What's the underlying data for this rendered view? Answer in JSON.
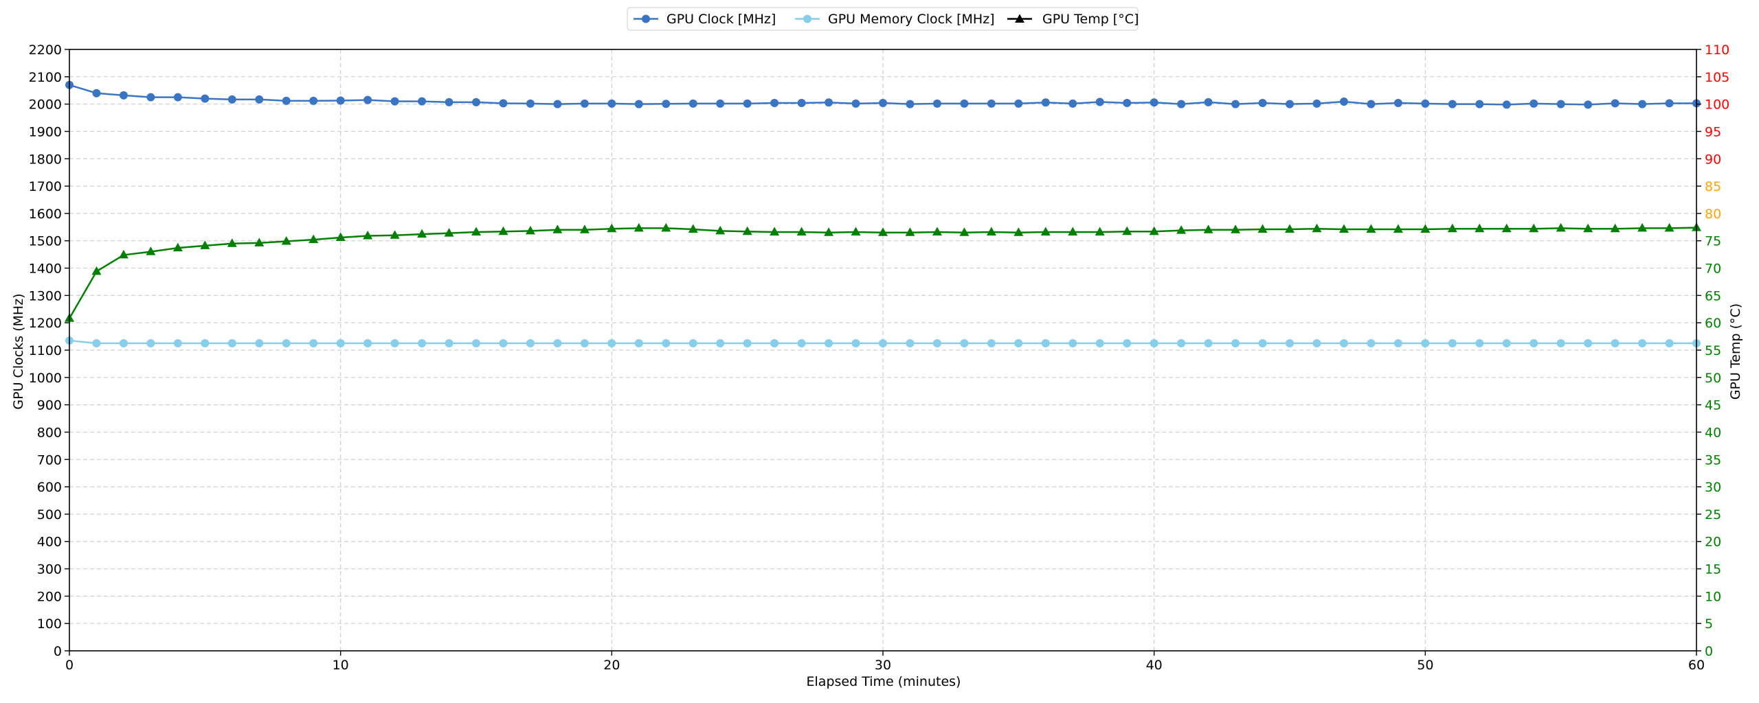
{
  "chart_data": {
    "type": "line",
    "xlabel": "Elapsed Time (minutes)",
    "ylabel_left": "GPU Clocks (MHz)",
    "ylabel_right": "GPU Temp (°C)",
    "xlim": [
      0,
      60
    ],
    "ylim_left": [
      0,
      2200
    ],
    "ylim_right": [
      0,
      110
    ],
    "xticks": [
      0,
      10,
      20,
      30,
      40,
      50,
      60
    ],
    "yticks_left": [
      0,
      100,
      200,
      300,
      400,
      500,
      600,
      700,
      800,
      900,
      1000,
      1100,
      1200,
      1300,
      1400,
      1500,
      1600,
      1700,
      1800,
      1900,
      2000,
      2100,
      2200
    ],
    "yticks_right": [
      0,
      5,
      10,
      15,
      20,
      25,
      30,
      35,
      40,
      45,
      50,
      55,
      60,
      65,
      70,
      75,
      80,
      85,
      90,
      95,
      100,
      105,
      110
    ],
    "right_tick_colors": {
      "green_upto": 75,
      "orange": [
        80,
        85
      ],
      "red_from": 90
    },
    "colors": {
      "green": "#008000",
      "orange": "#FFA500",
      "red": "#FF0000"
    },
    "grid": true,
    "legend_position": "top-center",
    "x": [
      0,
      1,
      2,
      3,
      4,
      5,
      6,
      7,
      8,
      9,
      10,
      11,
      12,
      13,
      14,
      15,
      16,
      17,
      18,
      19,
      20,
      21,
      22,
      23,
      24,
      25,
      26,
      27,
      28,
      29,
      30,
      31,
      32,
      33,
      34,
      35,
      36,
      37,
      38,
      39,
      40,
      41,
      42,
      43,
      44,
      45,
      46,
      47,
      48,
      49,
      50,
      51,
      52,
      53,
      54,
      55,
      56,
      57,
      58,
      59,
      60
    ],
    "series": [
      {
        "name": "GPU Clock [MHz]",
        "axis": "left",
        "color": "#3a75c4",
        "marker": "circle",
        "values": [
          2070,
          2040,
          2032,
          2025,
          2025,
          2020,
          2017,
          2017,
          2012,
          2012,
          2013,
          2015,
          2010,
          2010,
          2007,
          2007,
          2003,
          2002,
          2000,
          2002,
          2002,
          2000,
          2001,
          2002,
          2002,
          2002,
          2004,
          2004,
          2006,
          2002,
          2004,
          2000,
          2002,
          2002,
          2002,
          2002,
          2006,
          2002,
          2008,
          2004,
          2006,
          2000,
          2007,
          2000,
          2004,
          2000,
          2002,
          2009,
          2000,
          2004,
          2002,
          2000,
          2000,
          1998,
          2002,
          2000,
          1998,
          2003,
          2000,
          2003,
          2003
        ]
      },
      {
        "name": "GPU Memory Clock [MHz]",
        "axis": "left",
        "color": "#87ceeb",
        "marker": "circle",
        "values": [
          1135,
          1125,
          1125,
          1125,
          1125,
          1125,
          1125,
          1125,
          1125,
          1125,
          1125,
          1125,
          1125,
          1125,
          1125,
          1125,
          1125,
          1125,
          1125,
          1125,
          1125,
          1125,
          1125,
          1125,
          1125,
          1125,
          1125,
          1125,
          1125,
          1125,
          1125,
          1125,
          1125,
          1125,
          1125,
          1125,
          1125,
          1125,
          1125,
          1125,
          1125,
          1125,
          1125,
          1125,
          1125,
          1125,
          1125,
          1125,
          1125,
          1125,
          1125,
          1125,
          1125,
          1125,
          1125,
          1125,
          1125,
          1125,
          1125,
          1125,
          1125
        ]
      },
      {
        "name": "GPU Temp [°C]",
        "axis": "right",
        "color": "#008000",
        "marker": "triangle",
        "legend_color": "#000000",
        "values": [
          60.8,
          69.4,
          72.4,
          73.0,
          73.7,
          74.1,
          74.5,
          74.6,
          74.9,
          75.2,
          75.6,
          75.9,
          76.0,
          76.2,
          76.4,
          76.6,
          76.7,
          76.8,
          77.0,
          77.0,
          77.2,
          77.3,
          77.3,
          77.1,
          76.8,
          76.7,
          76.6,
          76.6,
          76.5,
          76.6,
          76.5,
          76.5,
          76.6,
          76.5,
          76.6,
          76.5,
          76.6,
          76.6,
          76.6,
          76.7,
          76.7,
          76.9,
          77.0,
          77.0,
          77.1,
          77.1,
          77.2,
          77.1,
          77.1,
          77.1,
          77.1,
          77.2,
          77.2,
          77.2,
          77.2,
          77.3,
          77.2,
          77.2,
          77.3,
          77.3,
          77.4
        ]
      }
    ]
  }
}
